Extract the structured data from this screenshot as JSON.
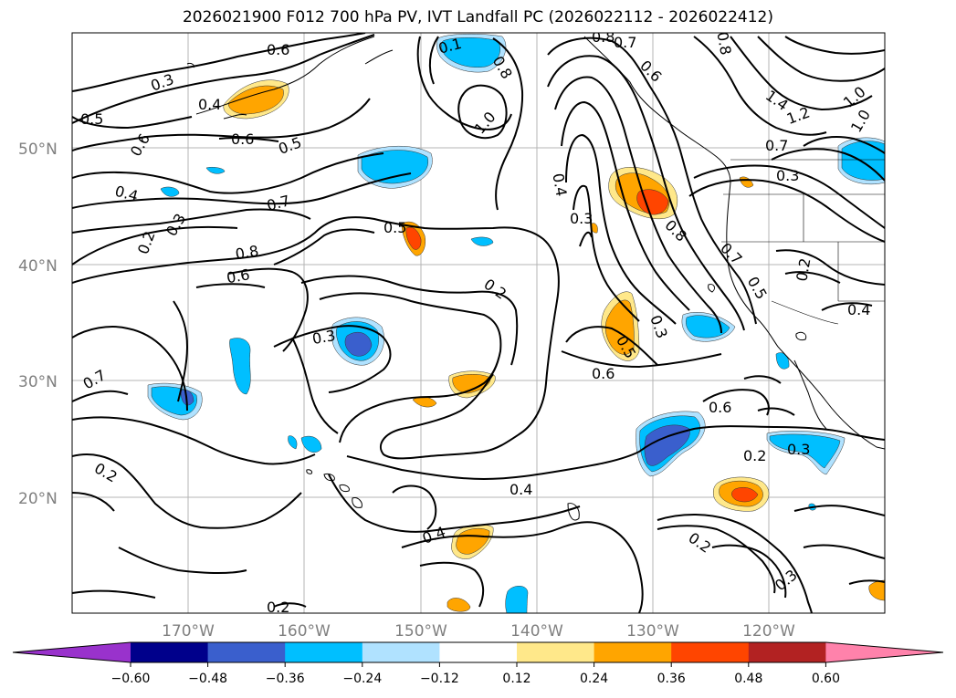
{
  "title": "2026021900 F012 700 hPa PV, IVT Landfall PC (2026022112 - 2026022412)",
  "map": {
    "lat_labels": [
      "50°N",
      "40°N",
      "30°N",
      "20°N"
    ],
    "lon_labels": [
      "170°W",
      "160°W",
      "150°W",
      "140°W",
      "130°W",
      "120°W"
    ],
    "gridlines": true
  },
  "contour_labels": [
    "0.3",
    "0.4",
    "0.5",
    "0.6",
    "0.6",
    "0.5",
    "0.4",
    "0.3",
    "0.2",
    "0.7",
    "0.8",
    "0.6",
    "0.5",
    "0.6",
    "0.1",
    "0.8",
    "1.0",
    "0.8",
    "0.7",
    "0.6",
    "0.8",
    "1.4",
    "1.2",
    "1.0",
    "1.0",
    "0.7",
    "0.3",
    "0.4",
    "0.3",
    "0.8",
    "0.7",
    "0.5",
    "0.2",
    "0.4",
    "0.3",
    "0.5",
    "0.6",
    "0.2",
    "0.3",
    "0.7",
    "0.2",
    "0.6",
    "0.2",
    "0.3",
    "0.4",
    "0.4",
    "0.2",
    "0.3",
    "0.2"
  ],
  "colorbar": {
    "ticks": [
      "−0.60",
      "−0.48",
      "−0.36",
      "−0.24",
      "−0.12",
      "0.12",
      "0.24",
      "0.36",
      "0.48",
      "0.60"
    ],
    "colors": [
      "#9932cc",
      "#00008b",
      "#3a5fcd",
      "#00bfff",
      "#b0e2ff",
      "#ffffff",
      "#ffe88a",
      "#ffa500",
      "#ff4500",
      "#b22222",
      "#ff82ab"
    ]
  }
}
